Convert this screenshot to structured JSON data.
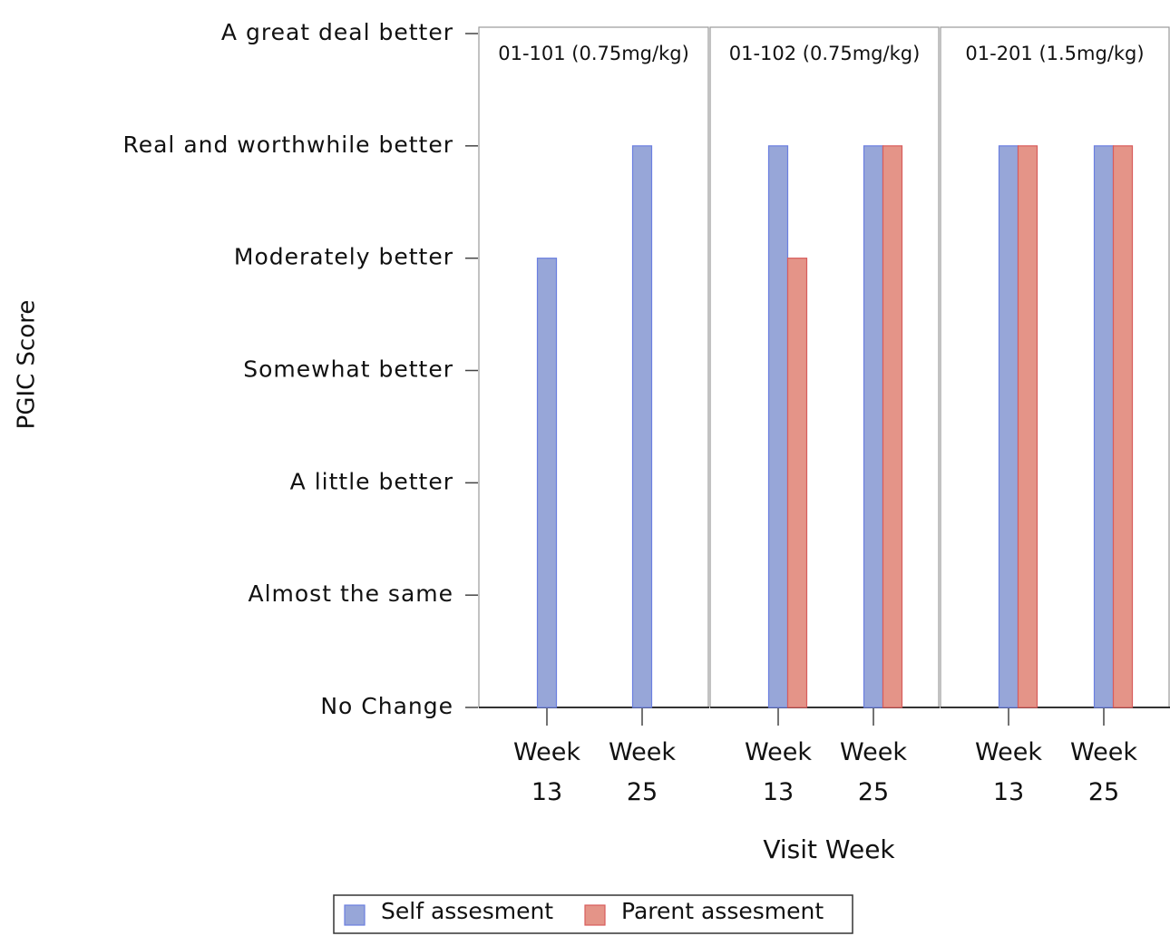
{
  "chart_data": {
    "type": "bar",
    "ylabel": "PGIC Score",
    "xlabel": "Visit Week",
    "ylim": [
      0,
      6
    ],
    "yticks": [
      {
        "value": 0,
        "label": "No Change"
      },
      {
        "value": 1,
        "label": "Almost the same"
      },
      {
        "value": 2,
        "label": "A little better"
      },
      {
        "value": 3,
        "label": "Somewhat better"
      },
      {
        "value": 4,
        "label": "Moderately better"
      },
      {
        "value": 5,
        "label": "Real and worthwhile better"
      },
      {
        "value": 6,
        "label": "A great deal better"
      }
    ],
    "categories": [
      "Week 13",
      "Week 25"
    ],
    "series": [
      {
        "name": "Self assesment",
        "color": "#97a6d8",
        "edge": "#6b7fe0"
      },
      {
        "name": "Parent assesment",
        "color": "#e49488",
        "edge": "#d85c5c"
      }
    ],
    "panels": [
      {
        "title": "01-101 (0.75mg/kg)",
        "series": [
          {
            "values": [
              4,
              5
            ]
          },
          {
            "values": [
              null,
              null
            ]
          }
        ]
      },
      {
        "title": "01-102 (0.75mg/kg)",
        "series": [
          {
            "values": [
              5,
              5
            ]
          },
          {
            "values": [
              4,
              5
            ]
          }
        ]
      },
      {
        "title": "01-201 (1.5mg/kg)",
        "series": [
          {
            "values": [
              5,
              5
            ]
          },
          {
            "values": [
              5,
              5
            ]
          }
        ]
      }
    ]
  }
}
